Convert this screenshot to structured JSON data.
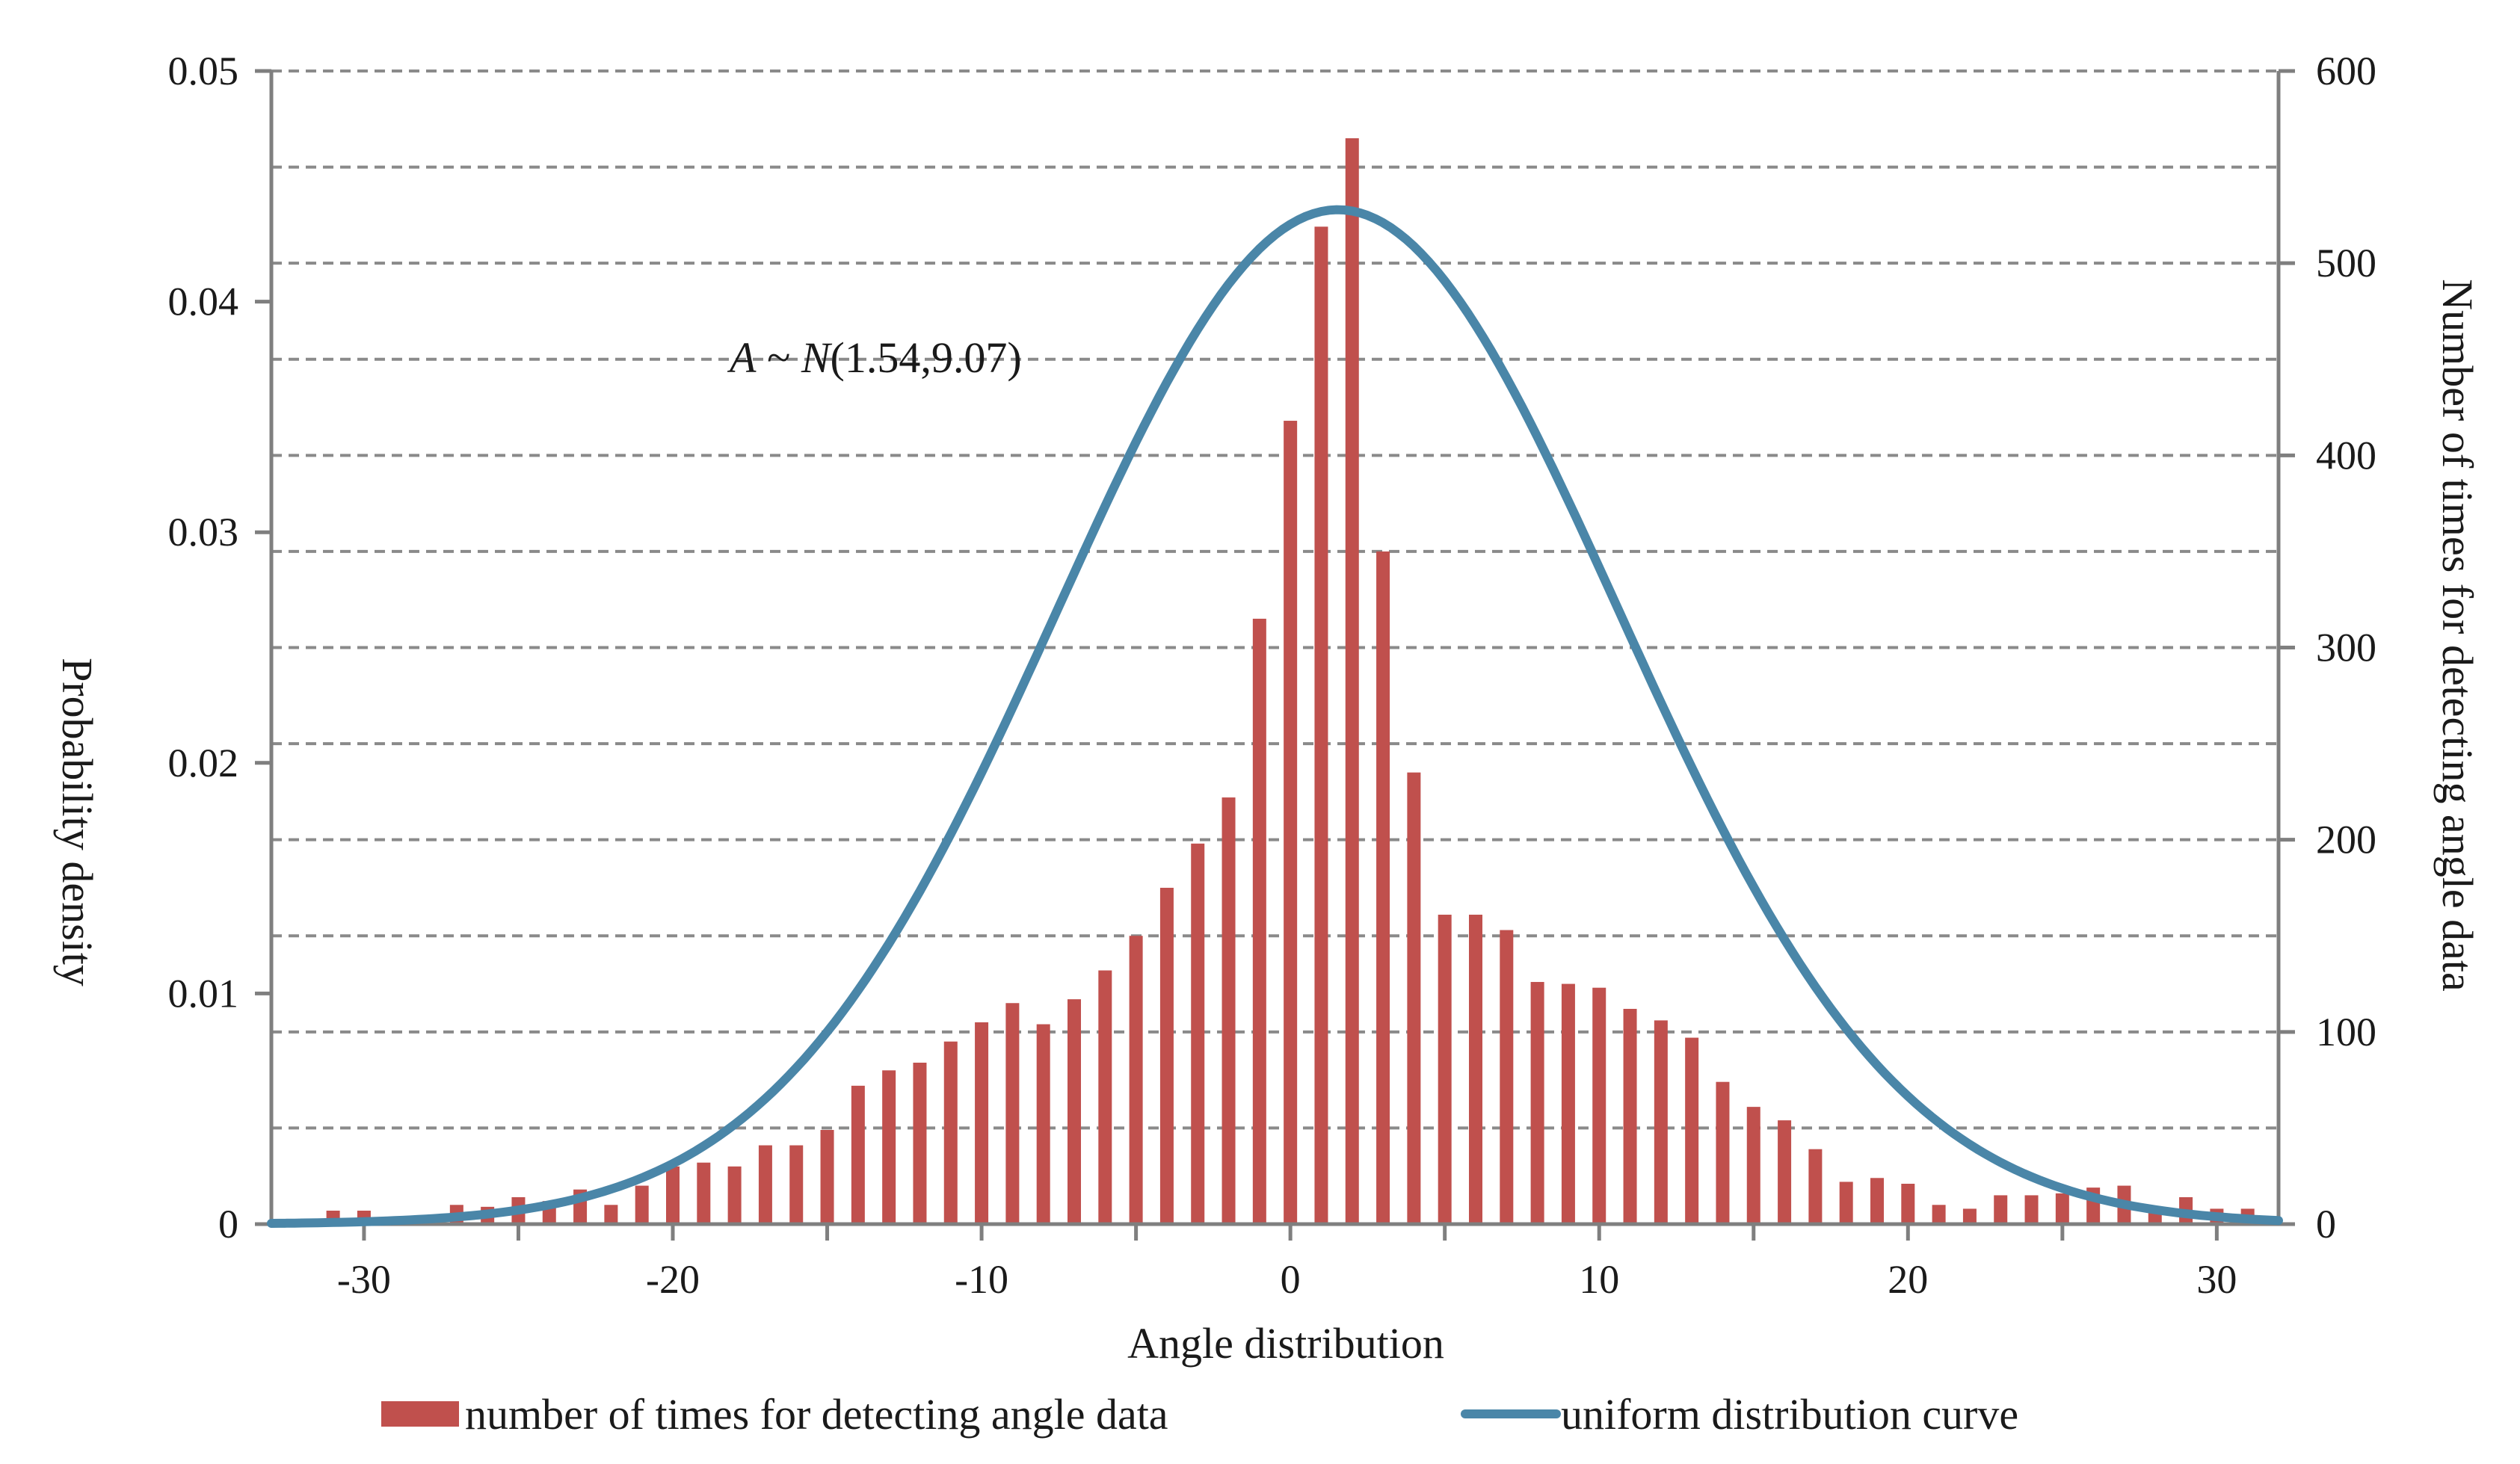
{
  "chart_data": {
    "type": "bar",
    "xlabel": "Angle distribution",
    "ylabel_left": "Probability density",
    "ylabel_right": "Number of times for detecting angle data",
    "annotation": {
      "prefix": "A",
      "tilde": " ~ ",
      "dist": "N",
      "params": "(1.54,9.07)"
    },
    "x_range": [
      -33,
      32
    ],
    "x_ticks": [
      -30,
      -20,
      -10,
      0,
      10,
      20,
      30
    ],
    "y_left_range": [
      0,
      0.05
    ],
    "y_left_ticks": [
      "0",
      "0.01",
      "0.02",
      "0.03",
      "0.04",
      "0.05"
    ],
    "y_left_tick_values": [
      0,
      0.01,
      0.02,
      0.03,
      0.04,
      0.05
    ],
    "y_right_range": [
      0,
      600
    ],
    "y_right_ticks": [
      "0",
      "100",
      "200",
      "300",
      "400",
      "500",
      "600"
    ],
    "y_right_tick_values": [
      0,
      100,
      200,
      300,
      400,
      500,
      600
    ],
    "gridlines": "dashed horizontal every 50 (right axis)",
    "legend_position": "bottom",
    "series": [
      {
        "name": "number of times for detecting angle data",
        "kind": "bar",
        "axis": "right",
        "color": "#c0504d",
        "x": [
          -31,
          -30,
          -29,
          -28,
          -27,
          -26,
          -25,
          -24,
          -23,
          -22,
          -21,
          -20,
          -19,
          -18,
          -17,
          -16,
          -15,
          -14,
          -13,
          -12,
          -11,
          -10,
          -9,
          -8,
          -7,
          -6,
          -5,
          -4,
          -3,
          -2,
          -1,
          0,
          1,
          2,
          3,
          4,
          5,
          6,
          7,
          8,
          9,
          10,
          11,
          12,
          13,
          14,
          15,
          16,
          17,
          18,
          19,
          20,
          21,
          22,
          23,
          24,
          25,
          26,
          27,
          28,
          29,
          30,
          31
        ],
        "values": [
          7,
          7,
          2,
          3,
          10,
          9,
          14,
          12,
          18,
          10,
          20,
          30,
          32,
          30,
          41,
          41,
          49,
          72,
          80,
          84,
          95,
          105,
          115,
          104,
          117,
          132,
          150,
          175,
          198,
          222,
          315,
          418,
          519,
          565,
          350,
          235,
          161,
          161,
          153,
          126,
          125,
          123,
          112,
          106,
          97,
          74,
          61,
          54,
          39,
          22,
          24,
          21,
          10,
          8,
          15,
          15,
          16,
          19,
          20,
          9,
          14,
          8,
          8
        ]
      },
      {
        "name": "uniform distribution curve",
        "kind": "line",
        "axis": "left",
        "color": "#4a86a8",
        "distribution": "normal",
        "mean": 1.54,
        "std": 9.07
      }
    ]
  }
}
